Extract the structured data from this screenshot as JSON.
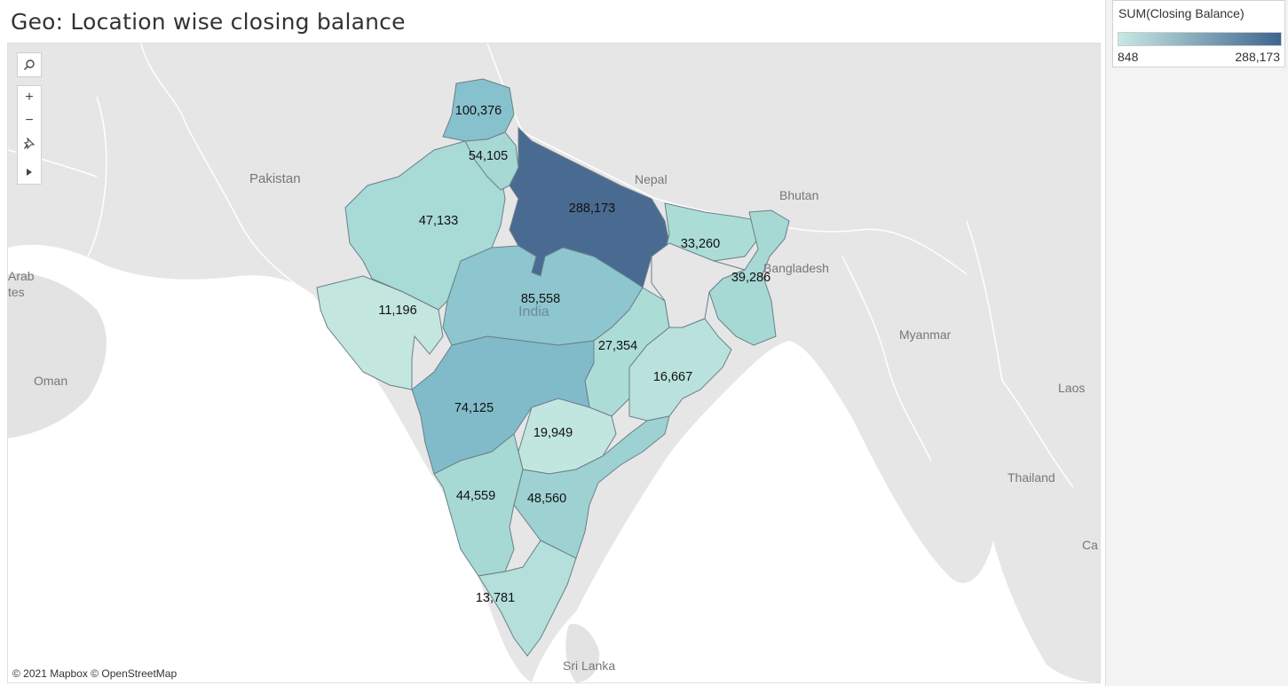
{
  "title": "Geo: Location wise closing balance",
  "legend": {
    "title": "SUM(Closing Balance)",
    "min": "848",
    "max": "288,173",
    "color_low": "#c8e9e4",
    "color_high": "#3e6590"
  },
  "attribution": "© 2021 Mapbox © OpenStreetMap",
  "country_labels": {
    "pakistan": "Pakistan",
    "nepal": "Nepal",
    "bhutan": "Bhutan",
    "bangladesh": "Bangladesh",
    "myanmar": "Myanmar",
    "oman": "Oman",
    "laos": "Laos",
    "thailand": "Thailand",
    "sri_lanka": "Sri Lanka",
    "india": "India",
    "arab": "Arab",
    "tes": "tes",
    "ca": "Ca"
  },
  "chart_data": {
    "type": "map",
    "measure": "SUM(Closing Balance)",
    "regions": [
      {
        "label": "100,376",
        "value": 100376
      },
      {
        "label": "54,105",
        "value": 54105
      },
      {
        "label": "288,173",
        "value": 288173
      },
      {
        "label": "47,133",
        "value": 47133
      },
      {
        "label": "33,260",
        "value": 33260
      },
      {
        "label": "39,286",
        "value": 39286
      },
      {
        "label": "11,196",
        "value": 11196
      },
      {
        "label": "85,558",
        "value": 85558
      },
      {
        "label": "27,354",
        "value": 27354
      },
      {
        "label": "16,667",
        "value": 16667
      },
      {
        "label": "74,125",
        "value": 74125
      },
      {
        "label": "19,949",
        "value": 19949
      },
      {
        "label": "44,559",
        "value": 44559
      },
      {
        "label": "48,560",
        "value": 48560
      },
      {
        "label": "13,781",
        "value": 13781
      }
    ]
  },
  "toolbar": {
    "search_icon": "search-icon",
    "zoom_in_label": "+",
    "zoom_out_label": "−",
    "pin_icon": "pin-icon",
    "expand_icon": "play-icon"
  }
}
